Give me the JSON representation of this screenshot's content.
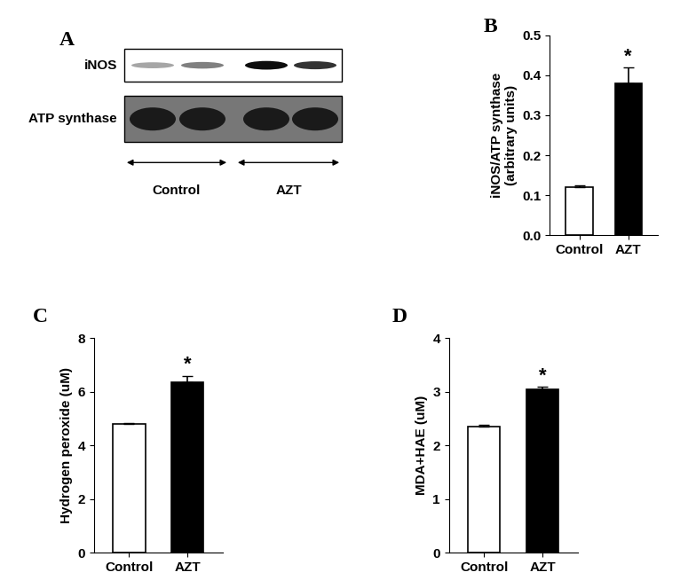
{
  "blot": {
    "title": "A",
    "rows": [
      "iNOS",
      "ATP synthase"
    ],
    "groups": [
      "Control",
      "AZT"
    ]
  },
  "chart_data": [
    {
      "type": "bar",
      "title": "B",
      "ylabel": "iNOS/ATP synthase\n(arbitrary units)",
      "categories": [
        "Control",
        "AZT"
      ],
      "values": [
        0.12,
        0.38
      ],
      "errors": [
        0.005,
        0.04
      ],
      "colors": [
        "#ffffff",
        "#000000"
      ],
      "ylim": [
        0,
        0.5
      ],
      "yticks": [
        0.0,
        0.1,
        0.2,
        0.3,
        0.4,
        0.5
      ],
      "annotations": [
        {
          "category": "AZT",
          "text": "*"
        }
      ]
    },
    {
      "type": "bar",
      "title": "C",
      "ylabel": "Hydrogen peroxide (uM)",
      "categories": [
        "Control",
        "AZT"
      ],
      "values": [
        4.8,
        6.35
      ],
      "errors": [
        0.05,
        0.25
      ],
      "colors": [
        "#ffffff",
        "#000000"
      ],
      "ylim": [
        0,
        8
      ],
      "yticks": [
        0,
        2,
        4,
        6,
        8
      ],
      "annotations": [
        {
          "category": "AZT",
          "text": "*"
        }
      ]
    },
    {
      "type": "bar",
      "title": "D",
      "ylabel": "MDA+HAE (uM)",
      "categories": [
        "Control",
        "AZT"
      ],
      "values": [
        2.35,
        3.05
      ],
      "errors": [
        0.04,
        0.05
      ],
      "colors": [
        "#ffffff",
        "#000000"
      ],
      "ylim": [
        0,
        4
      ],
      "yticks": [
        0,
        1,
        2,
        3,
        4
      ],
      "annotations": [
        {
          "category": "AZT",
          "text": "*"
        }
      ]
    }
  ]
}
